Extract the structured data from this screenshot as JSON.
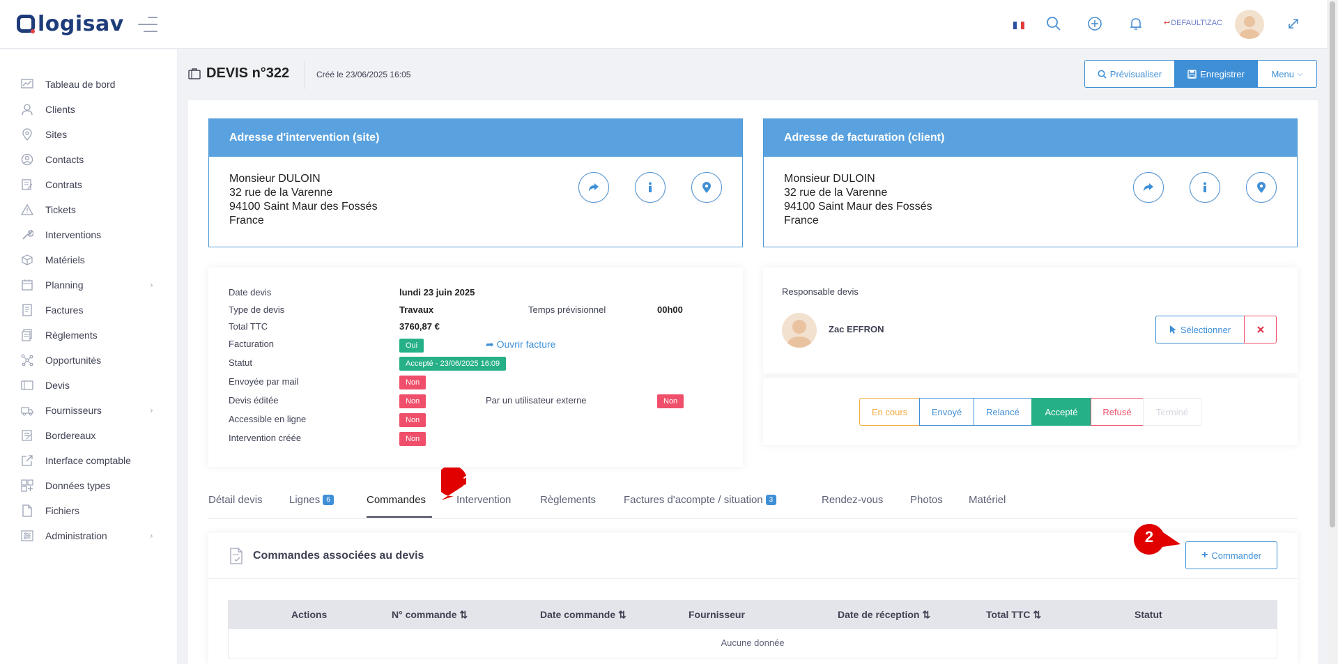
{
  "app": {
    "logo": "logisav"
  },
  "topbar": {
    "user": "DEFAULT\\ZAC"
  },
  "sidebar": {
    "items": [
      {
        "label": "Tableau de bord",
        "icon": "dashboard-icon"
      },
      {
        "label": "Clients",
        "icon": "clients-icon"
      },
      {
        "label": "Sites",
        "icon": "location-icon"
      },
      {
        "label": "Contacts",
        "icon": "contacts-icon"
      },
      {
        "label": "Contrats",
        "icon": "contract-icon"
      },
      {
        "label": "Tickets",
        "icon": "warning-icon"
      },
      {
        "label": "Interventions",
        "icon": "wrench-icon"
      },
      {
        "label": "Matériels",
        "icon": "box-icon"
      },
      {
        "label": "Planning",
        "icon": "calendar-icon",
        "chevron": true
      },
      {
        "label": "Factures",
        "icon": "invoice-icon"
      },
      {
        "label": "Règlements",
        "icon": "payments-icon"
      },
      {
        "label": "Opportunités",
        "icon": "network-icon"
      },
      {
        "label": "Devis",
        "icon": "quote-icon"
      },
      {
        "label": "Fournisseurs",
        "icon": "truck-icon",
        "chevron": true
      },
      {
        "label": "Bordereaux",
        "icon": "slips-icon"
      },
      {
        "label": "Interface comptable",
        "icon": "export-icon"
      },
      {
        "label": "Données types",
        "icon": "data-types-icon"
      },
      {
        "label": "Fichiers",
        "icon": "files-icon"
      },
      {
        "label": "Administration",
        "icon": "admin-icon",
        "chevron": true
      }
    ]
  },
  "header": {
    "title": "DEVIS n°322",
    "created": "Créé le 23/06/2025 16:05",
    "preview_label": "Prévisualiser",
    "save_label": "Enregistrer",
    "menu_label": "Menu"
  },
  "intervention_address": {
    "title": "Adresse d'intervention (site)",
    "lines": [
      "Monsieur DULOIN",
      "32 rue de la Varenne",
      "94100 Saint Maur des Fossés",
      "France"
    ]
  },
  "billing_address": {
    "title": "Adresse de facturation (client)",
    "lines": [
      "Monsieur DULOIN",
      "32 rue de la Varenne",
      "94100 Saint Maur des Fossés",
      "France"
    ]
  },
  "details": {
    "date_label": "Date devis",
    "date_value": "lundi 23 juin 2025",
    "type_label": "Type de devis",
    "type_value": "Travaux",
    "time_label": "Temps prévisionnel",
    "time_value": "00h00",
    "total_label": "Total TTC",
    "total_value": "3760,87 €",
    "billing_label": "Facturation",
    "billing_value": "Oui",
    "open_invoice": "Ouvrir facture",
    "status_label": "Statut",
    "status_value": "Accepté - 23/06/2025 16:09",
    "mail_label": "Envoyée par mail",
    "mail_value": "Non",
    "edited_label": "Devis éditée",
    "edited_value": "Non",
    "external_label": "Par un utilisateur externe",
    "external_value": "Non",
    "online_label": "Accessible en ligne",
    "online_value": "Non",
    "intervention_label": "Intervention créée",
    "intervention_value": "Non"
  },
  "responsible": {
    "label": "Responsable devis",
    "name": "Zac EFFRON",
    "select_label": "Sélectionner"
  },
  "status_buttons": [
    {
      "label": "En cours",
      "color": "#f2a93b"
    },
    {
      "label": "Envoyé",
      "color": "#3f8fd6"
    },
    {
      "label": "Relancé",
      "color": "#3f8fd6"
    },
    {
      "label": "Accepté",
      "color": "#26b088"
    },
    {
      "label": "Refusé",
      "color": "#ef4f6a"
    },
    {
      "label": "Terminé",
      "color": "#c8cad3"
    }
  ],
  "tabs": [
    {
      "label": "Détail devis"
    },
    {
      "label": "Lignes",
      "badge": "6"
    },
    {
      "label": "Commandes"
    },
    {
      "label": "Intervention"
    },
    {
      "label": "Règlements"
    },
    {
      "label": "Factures d'acompte / situation",
      "badge": "3"
    },
    {
      "label": "Rendez-vous"
    },
    {
      "label": "Photos"
    },
    {
      "label": "Matériel"
    }
  ],
  "orders": {
    "title": "Commandes associées au devis",
    "button": "Commander",
    "columns": [
      "Actions",
      "N° commande",
      "Date commande",
      "Fournisseur",
      "Date de réception",
      "Total TTC",
      "Statut"
    ],
    "empty": "Aucune donnée"
  },
  "markers": [
    "1",
    "2"
  ],
  "colors": {
    "accent": "#3f8fd6",
    "success": "#26b088",
    "danger": "#ef4f6a",
    "warning": "#f2a93b"
  }
}
